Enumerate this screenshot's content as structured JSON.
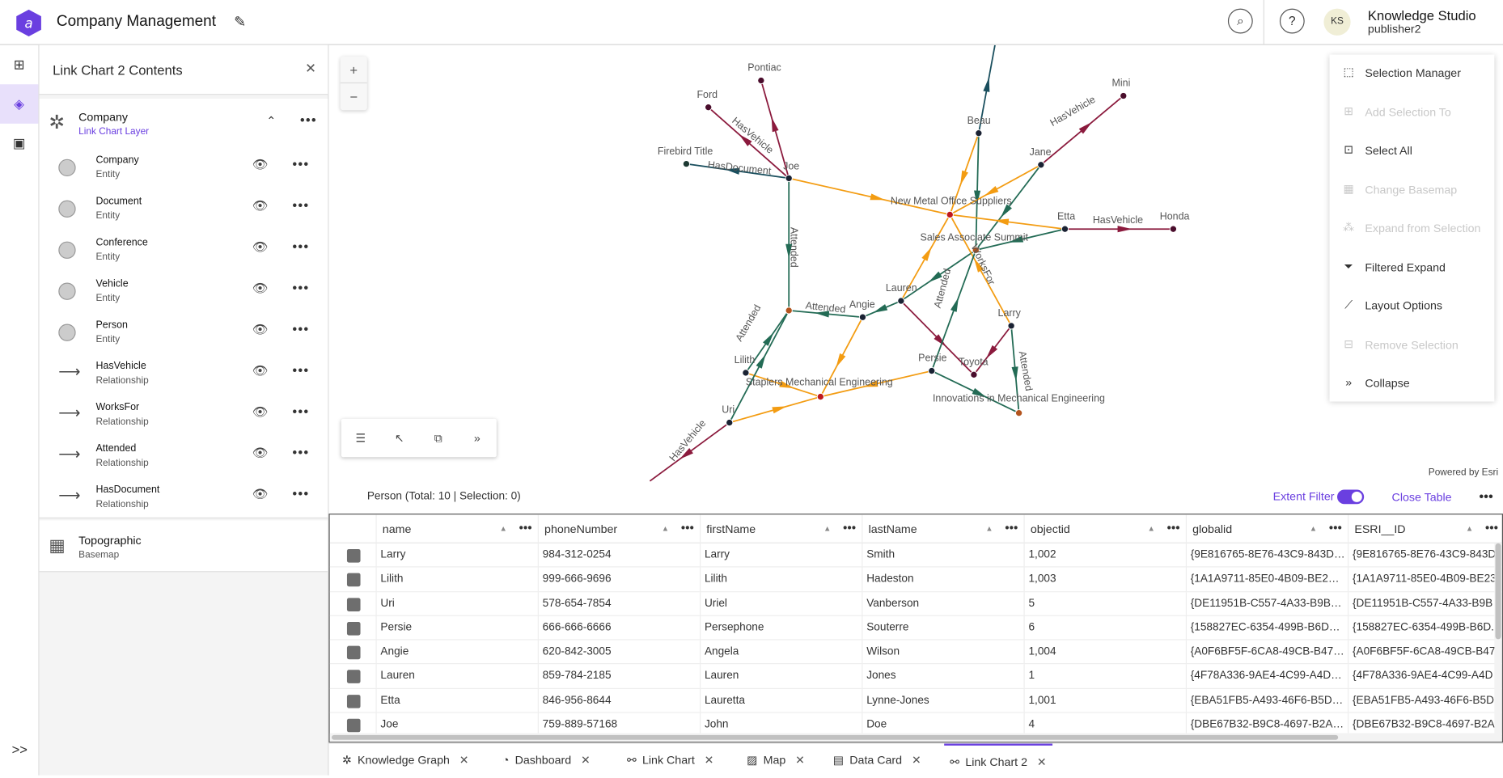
{
  "header": {
    "title": "Company Management",
    "user_initials": "KS",
    "user_name": "Knowledge Studio",
    "user_role": "publisher2",
    "icons": [
      "app-logo-icon",
      "pencil-icon",
      "search-icon",
      "help-icon"
    ]
  },
  "rail": {
    "icons": [
      "hierarchy-icon",
      "layers-icon",
      "save-icon",
      "expand-icon"
    ],
    "expand_label": ">>"
  },
  "panel": {
    "title": "Link Chart 2 Contents",
    "layer": {
      "name": "Company",
      "type": "Link Chart Layer"
    },
    "items": [
      {
        "name": "Company",
        "type": "Entity",
        "kind": "entity"
      },
      {
        "name": "Document",
        "type": "Entity",
        "kind": "entity"
      },
      {
        "name": "Conference",
        "type": "Entity",
        "kind": "entity"
      },
      {
        "name": "Vehicle",
        "type": "Entity",
        "kind": "entity"
      },
      {
        "name": "Person",
        "type": "Entity",
        "kind": "entity"
      },
      {
        "name": "HasVehicle",
        "type": "Relationship",
        "kind": "rel"
      },
      {
        "name": "WorksFor",
        "type": "Relationship",
        "kind": "rel"
      },
      {
        "name": "Attended",
        "type": "Relationship",
        "kind": "rel"
      },
      {
        "name": "HasDocument",
        "type": "Relationship",
        "kind": "rel"
      }
    ],
    "basemap": {
      "name": "Topographic",
      "type": "Basemap"
    }
  },
  "map": {
    "zoom_in": "+",
    "zoom_out": "−",
    "powered": "Powered by Esri",
    "toolbar": [
      "list-icon",
      "select-icon",
      "screenshot-icon",
      "expand-icon"
    ],
    "colors": {
      "HasVehicle": "#8b1a3d",
      "WorksFor": "#f39c12",
      "Attended": "#236b55",
      "HasDocument": "#1a4f5e"
    },
    "nodes": [
      "Pontiac",
      "Ford",
      "Firebird Title",
      "Joe",
      "Beau",
      "Mini",
      "Jane",
      "New Metal Office Suppliers",
      "Etta",
      "Honda",
      "Sales Associate Summit",
      "Lauren",
      "Angie",
      "",
      "Larry",
      "Toyota",
      "Persie",
      "Lilith",
      "Staplers Mechanical Engineering",
      "Innovations in Mechanical Engineering",
      "Uri"
    ],
    "edge_labels": [
      "HasVehicle",
      "HasDocument",
      "Attended",
      "WorksFor",
      "Attended",
      "HasVehicle",
      "HasVehicle",
      "Attended",
      "Attended",
      "Attended",
      "HasVehicle"
    ]
  },
  "menu": [
    {
      "label": "Selection Manager",
      "icon": "selection-manager-icon",
      "enabled": true
    },
    {
      "label": "Add Selection To",
      "icon": "add-selection-icon",
      "enabled": false
    },
    {
      "label": "Select All",
      "icon": "select-all-icon",
      "enabled": true
    },
    {
      "label": "Change Basemap",
      "icon": "basemap-icon",
      "enabled": false
    },
    {
      "label": "Expand from Selection",
      "icon": "expand-selection-icon",
      "enabled": false
    },
    {
      "label": "Filtered Expand",
      "icon": "filter-icon",
      "enabled": true
    },
    {
      "label": "Layout Options",
      "icon": "layout-icon",
      "enabled": true
    },
    {
      "label": "Remove Selection",
      "icon": "remove-selection-icon",
      "enabled": false
    },
    {
      "label": "Collapse",
      "icon": "collapse-icon",
      "enabled": true
    }
  ],
  "table": {
    "summary": "Person (Total: 10 | Selection: 0)",
    "extent_filter": "Extent Filter",
    "extent_on": true,
    "close": "Close Table",
    "columns": [
      "name",
      "phoneNumber",
      "firstName",
      "lastName",
      "objectid",
      "globalid",
      "ESRI__ID"
    ],
    "rows": [
      [
        "Larry",
        "984-312-0254",
        "Larry",
        "Smith",
        "1,002",
        "{9E816765-8E76-43C9-843D…",
        "{9E816765-8E76-43C9-843D"
      ],
      [
        "Lilith",
        "999-666-9696",
        "Lilith",
        "Hadeston",
        "1,003",
        "{1A1A9711-85E0-4B09-BE2…",
        "{1A1A9711-85E0-4B09-BE23"
      ],
      [
        "Uri",
        "578-654-7854",
        "Uriel",
        "Vanberson",
        "5",
        "{DE11951B-C557-4A33-B9B…",
        "{DE11951B-C557-4A33-B9B"
      ],
      [
        "Persie",
        "666-666-6666",
        "Persephone",
        "Souterre",
        "6",
        "{158827EC-6354-499B-B6D…",
        "{158827EC-6354-499B-B6D."
      ],
      [
        "Angie",
        "620-842-3005",
        "Angela",
        "Wilson",
        "1,004",
        "{A0F6BF5F-6CA8-49CB-B47…",
        "{A0F6BF5F-6CA8-49CB-B47"
      ],
      [
        "Lauren",
        "859-784-2185",
        "Lauren",
        "Jones",
        "1",
        "{4F78A336-9AE4-4C99-A4D…",
        "{4F78A336-9AE4-4C99-A4D"
      ],
      [
        "Etta",
        "846-956-8644",
        "Lauretta",
        "Lynne-Jones",
        "1,001",
        "{EBA51FB5-A493-46F6-B5D…",
        "{EBA51FB5-A493-46F6-B5D."
      ],
      [
        "Joe",
        "759-889-57168",
        "John",
        "Doe",
        "4",
        "{DBE67B32-B9C8-4697-B2A…",
        "{DBE67B32-B9C8-4697-B2A"
      ]
    ]
  },
  "tabs": [
    {
      "label": "Knowledge Graph",
      "icon": "knowledge-graph-icon"
    },
    {
      "label": "Dashboard",
      "icon": "dashboard-icon"
    },
    {
      "label": "Link Chart",
      "icon": "link-chart-icon"
    },
    {
      "label": "Map",
      "icon": "map-icon"
    },
    {
      "label": "Data Card",
      "icon": "data-card-icon"
    },
    {
      "label": "Link Chart 2",
      "icon": "link-chart-icon",
      "active": true
    }
  ]
}
